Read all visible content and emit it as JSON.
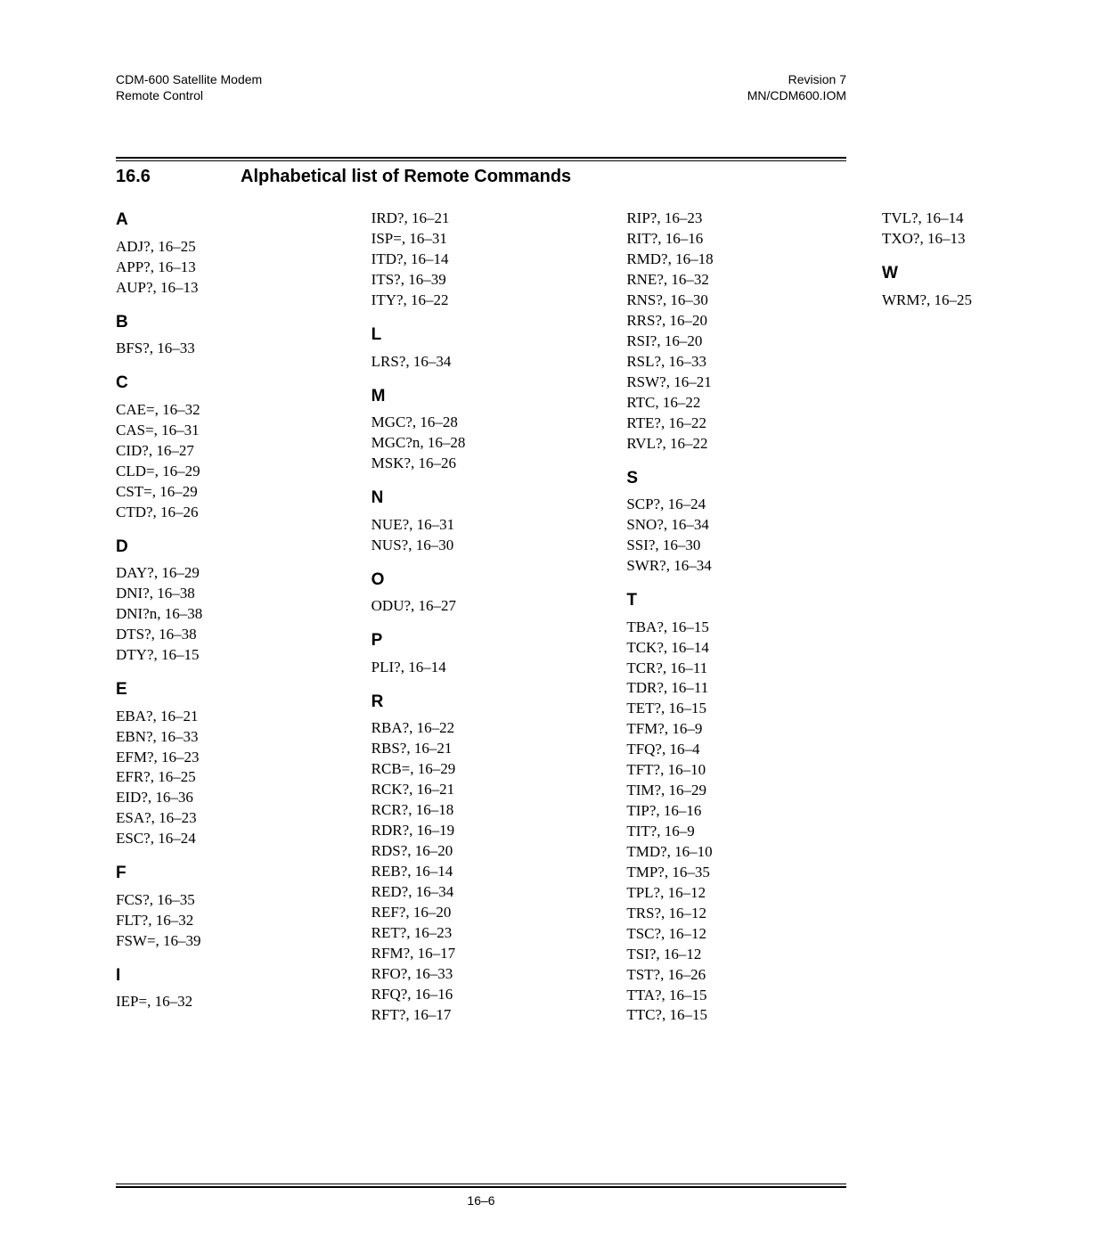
{
  "header": {
    "left1": "CDM-600 Satellite Modem",
    "left2": "Remote Control",
    "right1": "Revision 7",
    "right2": "MN/CDM600.IOM"
  },
  "section": {
    "num": "16.6",
    "title": "Alphabetical list of Remote Commands"
  },
  "pagenum": "16–6",
  "groups": [
    {
      "letter": "A",
      "entries": [
        "ADJ?, 16–25",
        "APP?, 16–13",
        "AUP?, 16–13"
      ]
    },
    {
      "letter": "B",
      "entries": [
        "BFS?, 16–33"
      ]
    },
    {
      "letter": "C",
      "entries": [
        "CAE=, 16–32",
        "CAS=, 16–31",
        "CID?, 16–27",
        "CLD=, 16–29",
        "CST=, 16–29",
        "CTD?, 16–26"
      ]
    },
    {
      "letter": "D",
      "entries": [
        "DAY?, 16–29",
        "DNI?, 16–38",
        "DNI?n, 16–38",
        "DTS?, 16–38",
        "DTY?, 16–15"
      ]
    },
    {
      "letter": "E",
      "entries": [
        "EBA?, 16–21",
        "EBN?, 16–33",
        "EFM?, 16–23",
        "EFR?, 16–25",
        "EID?, 16–36",
        "ESA?, 16–23",
        "ESC?, 16–24"
      ]
    },
    {
      "letter": "F",
      "entries": [
        "FCS?, 16–35",
        "FLT?, 16–32",
        "FSW=, 16–39"
      ]
    },
    {
      "letter": "I",
      "entries": [
        "IEP=, 16–32",
        "IRD?, 16–21",
        "ISP=, 16–31",
        "ITD?, 16–14",
        "ITS?, 16–39",
        "ITY?, 16–22"
      ]
    },
    {
      "letter": "L",
      "entries": [
        "LRS?, 16–34"
      ]
    },
    {
      "letter": "M",
      "entries": [
        "MGC?, 16–28",
        "MGC?n, 16–28",
        "MSK?, 16–26"
      ]
    },
    {
      "letter": "N",
      "entries": [
        "NUE?, 16–31",
        "NUS?, 16–30"
      ]
    },
    {
      "letter": "O",
      "entries": [
        "ODU?, 16–27"
      ]
    },
    {
      "letter": "P",
      "entries": [
        "PLI?, 16–14"
      ]
    },
    {
      "letter": "R",
      "entries": [
        "RBA?, 16–22",
        "RBS?, 16–21",
        "RCB=, 16–29",
        "RCK?, 16–21",
        "RCR?, 16–18",
        "RDR?, 16–19",
        "RDS?, 16–20",
        "REB?, 16–14",
        "RED?, 16–34",
        "REF?, 16–20",
        "RET?, 16–23",
        "RFM?, 16–17",
        "RFO?, 16–33",
        "RFQ?, 16–16",
        "RFT?, 16–17",
        "RIP?, 16–23",
        "RIT?, 16–16",
        "RMD?, 16–18",
        "RNE?, 16–32",
        "RNS?, 16–30",
        "RRS?, 16–20",
        "RSI?, 16–20",
        "RSL?, 16–33",
        "RSW?, 16–21",
        "RTC, 16–22",
        "RTE?, 16–22",
        "RVL?, 16–22"
      ]
    },
    {
      "letter": "S",
      "entries": [
        "SCP?, 16–24",
        "SNO?, 16–34",
        "SSI?, 16–30",
        "SWR?, 16–34"
      ]
    },
    {
      "letter": "T",
      "entries": [
        "TBA?, 16–15",
        "TCK?, 16–14",
        "TCR?, 16–11",
        "TDR?, 16–11",
        "TET?, 16–15",
        "TFM?, 16–9",
        "TFQ?, 16–4",
        "TFT?, 16–10",
        "TIM?, 16–29",
        "TIP?, 16–16",
        "TIT?, 16–9",
        "TMD?, 16–10",
        "TMP?, 16–35",
        "TPL?, 16–12",
        "TRS?, 16–12",
        "TSC?, 16–12",
        "TSI?, 16–12",
        "TST?, 16–26",
        "TTA?, 16–15",
        "TTC?, 16–15",
        "TVL?, 16–14",
        "TXO?, 16–13"
      ]
    },
    {
      "letter": "W",
      "entries": [
        "WRM?, 16–25"
      ]
    }
  ]
}
